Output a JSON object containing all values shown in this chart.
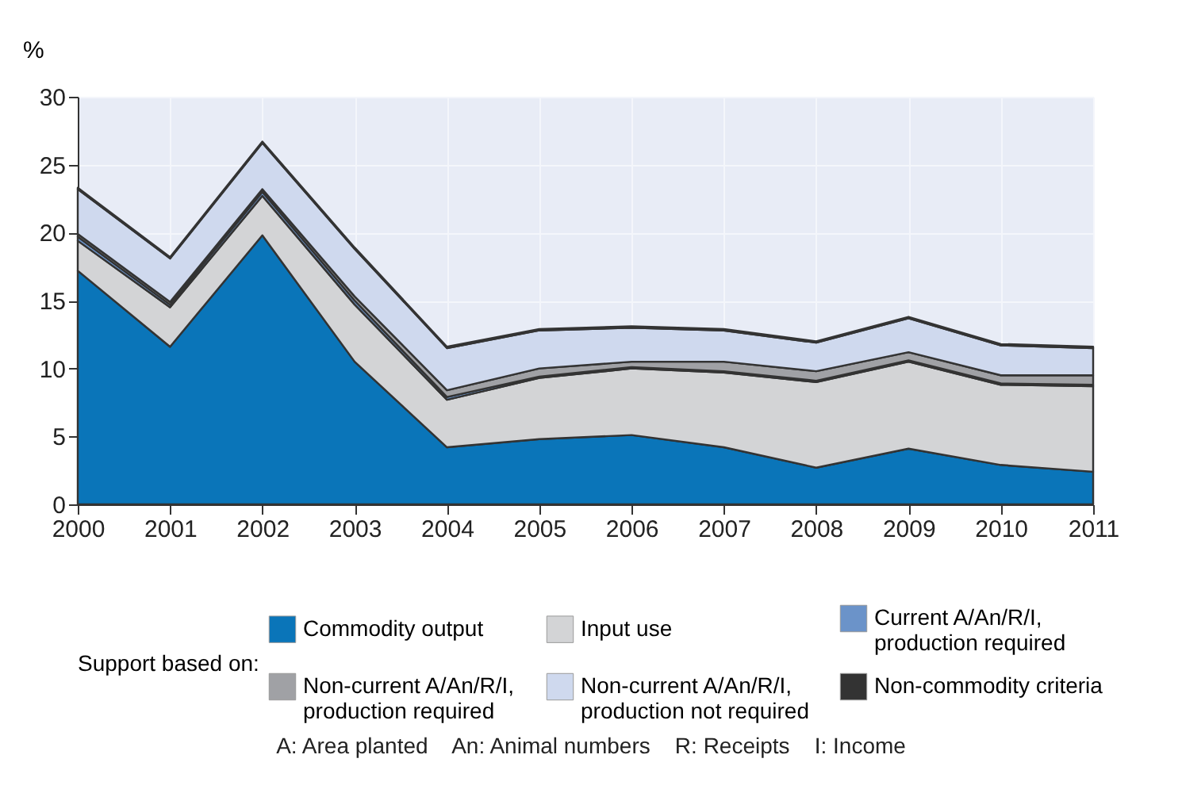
{
  "chart_data": {
    "type": "area",
    "stacked": true,
    "ylabel": "%",
    "legend_title": "Support based on:",
    "legend": "bottom",
    "grid": true,
    "categories": [
      "2000",
      "2001",
      "2002",
      "2003",
      "2004",
      "2005",
      "2006",
      "2007",
      "2008",
      "2009",
      "2010",
      "2011"
    ],
    "series": [
      {
        "name": "Commodity output",
        "color": "#0a75b9",
        "values": [
          17.2,
          11.6,
          19.8,
          10.5,
          4.2,
          4.8,
          5.1,
          4.2,
          2.7,
          4.1,
          2.9,
          2.4
        ]
      },
      {
        "name": "Input use",
        "color": "#d3d4d6",
        "values": [
          2.2,
          2.9,
          2.9,
          4.2,
          3.5,
          4.5,
          4.9,
          5.5,
          6.3,
          6.4,
          5.9,
          6.3
        ]
      },
      {
        "name": "Current A/An/R/I, production required",
        "color": "#6b93c9",
        "values": [
          0.3,
          0.2,
          0.3,
          0.3,
          0.2,
          0.1,
          0.1,
          0.1,
          0.1,
          0.1,
          0.1,
          0.1
        ]
      },
      {
        "name": "Non-current A/An/R/I, production required",
        "color": "#a0a1a5",
        "values": [
          0.2,
          0.2,
          0.2,
          0.3,
          0.5,
          0.6,
          0.4,
          0.7,
          0.7,
          0.6,
          0.6,
          0.7
        ]
      },
      {
        "name": "Non-current A/An/R/I, production not required",
        "color": "#cfd9ee",
        "values": [
          3.3,
          3.2,
          3.4,
          3.5,
          3.1,
          2.8,
          2.5,
          2.3,
          2.1,
          2.5,
          2.2,
          2.0
        ]
      },
      {
        "name": "Non-commodity criteria",
        "color": "#333333",
        "values": [
          0.1,
          0.1,
          0.1,
          0.1,
          0.1,
          0.1,
          0.1,
          0.1,
          0.1,
          0.1,
          0.1,
          0.1
        ]
      }
    ],
    "ylim": [
      0,
      30
    ],
    "yticks": [
      0,
      5,
      10,
      15,
      20,
      25,
      30
    ],
    "annotations": [
      "A: Area planted    An: Animal numbers    R: Receipts    I: Income"
    ]
  }
}
